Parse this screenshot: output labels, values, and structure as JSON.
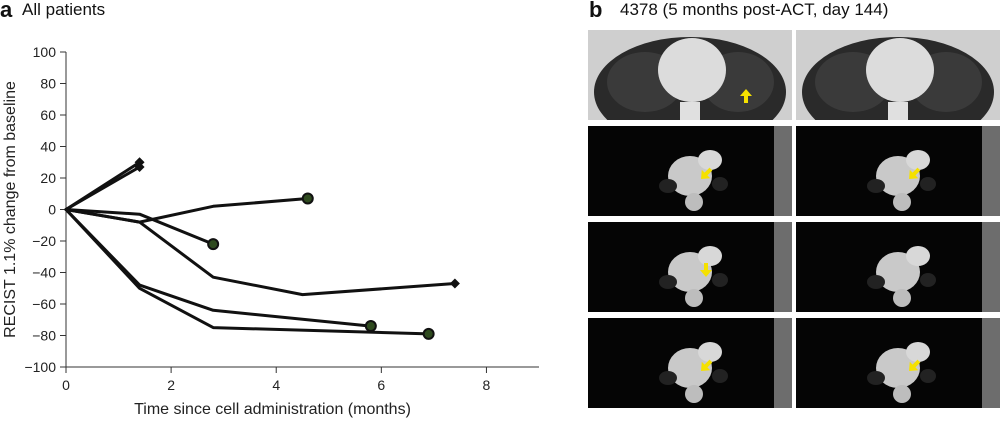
{
  "panel_a": {
    "label": "a",
    "title": "All patients"
  },
  "panel_b": {
    "label": "b",
    "title": "4378 (5 months post-ACT, day 144)"
  },
  "chart_data": {
    "type": "line",
    "title": "",
    "xlabel": "Time since cell administration (months)",
    "ylabel": "RECIST 1.1% change from baseline",
    "xlim": [
      0,
      9
    ],
    "ylim": [
      -100,
      100
    ],
    "xticks": [
      0,
      2,
      4,
      6,
      8
    ],
    "yticks": [
      100,
      80,
      60,
      40,
      20,
      0,
      -20,
      -40,
      -60,
      -80,
      -100
    ],
    "grid": false,
    "series": [
      {
        "x": [
          0,
          1.4
        ],
        "y": [
          0,
          30
        ],
        "end_marker": "diamond"
      },
      {
        "x": [
          0,
          1.4
        ],
        "y": [
          0,
          27
        ],
        "end_marker": "diamond"
      },
      {
        "x": [
          0,
          1.4,
          2.8,
          4.6
        ],
        "y": [
          0,
          -8,
          2,
          7
        ],
        "end_marker": "circle"
      },
      {
        "x": [
          0,
          1.4,
          2.8
        ],
        "y": [
          0,
          -3,
          -22
        ],
        "end_marker": "circle"
      },
      {
        "x": [
          0,
          1.4,
          2.8,
          4.5,
          7.4
        ],
        "y": [
          0,
          -8,
          -43,
          -54,
          -47
        ],
        "end_marker": "diamond"
      },
      {
        "x": [
          0,
          1.4,
          2.8,
          5.8
        ],
        "y": [
          0,
          -48,
          -64,
          -74
        ],
        "end_marker": "circle"
      },
      {
        "x": [
          0,
          1.4,
          2.8,
          6.9
        ],
        "y": [
          0,
          -50,
          -75,
          -79
        ],
        "end_marker": "circle"
      }
    ]
  },
  "ct_images": {
    "rows": 4,
    "arrow_color": "#f5e100",
    "panels": [
      {
        "window": "lung",
        "arrow": "up"
      },
      {
        "window": "lung",
        "arrow": "none"
      },
      {
        "window": "mediastinal",
        "arrow": "down-left"
      },
      {
        "window": "mediastinal",
        "arrow": "down-left"
      },
      {
        "window": "mediastinal",
        "arrow": "down"
      },
      {
        "window": "mediastinal",
        "arrow": "none"
      },
      {
        "window": "mediastinal",
        "arrow": "down-left"
      },
      {
        "window": "mediastinal",
        "arrow": "down-left"
      }
    ]
  }
}
